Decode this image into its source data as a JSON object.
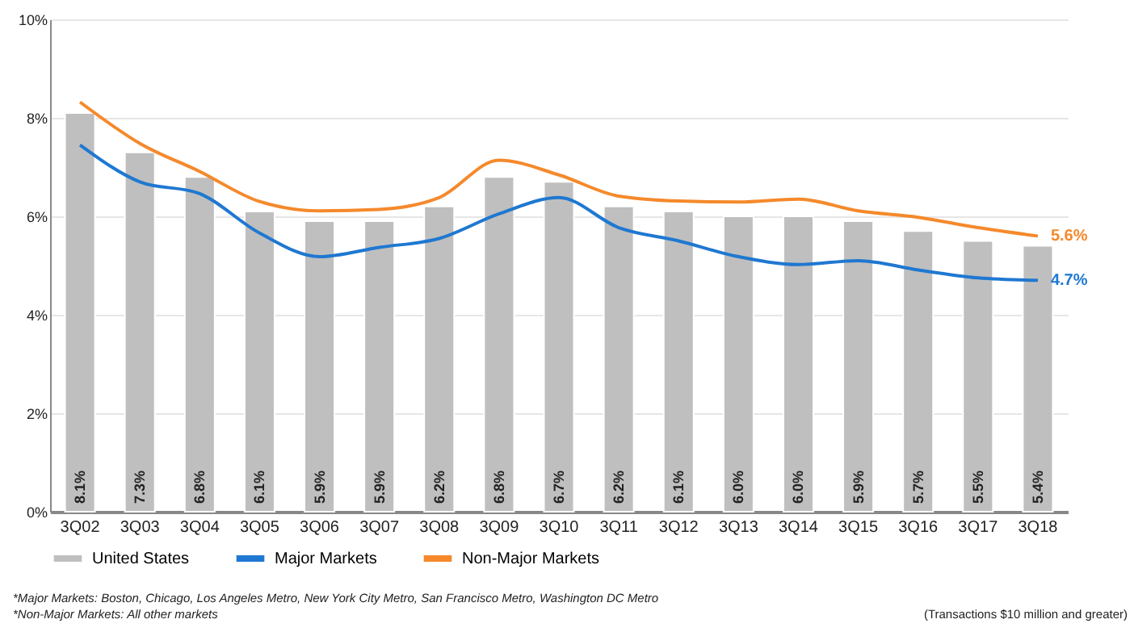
{
  "chart_data": {
    "type": "bar",
    "categories": [
      "3Q02",
      "3Q03",
      "3Q04",
      "3Q05",
      "3Q06",
      "3Q07",
      "3Q08",
      "3Q09",
      "3Q10",
      "3Q11",
      "3Q12",
      "3Q13",
      "3Q14",
      "3Q15",
      "3Q16",
      "3Q17",
      "3Q18"
    ],
    "series": [
      {
        "name": "United States",
        "color": "#bfbfbf",
        "values": [
          8.1,
          7.3,
          6.8,
          6.1,
          5.9,
          5.9,
          6.2,
          6.8,
          6.7,
          6.2,
          6.1,
          6.0,
          6.0,
          5.9,
          5.7,
          5.5,
          5.4
        ],
        "value_labels": [
          "8.1%",
          "7.3%",
          "6.8%",
          "6.1%",
          "5.9%",
          "5.9%",
          "6.2%",
          "6.8%",
          "6.7%",
          "6.2%",
          "6.1%",
          "6.0%",
          "6.0%",
          "5.9%",
          "5.7%",
          "5.5%",
          "5.4%"
        ]
      },
      {
        "name": "Major Markets",
        "type": "line",
        "color": "#1f78d1",
        "values": [
          7.45,
          6.7,
          6.46,
          5.66,
          5.18,
          5.37,
          5.55,
          6.05,
          6.38,
          5.77,
          5.5,
          5.18,
          5.02,
          5.1,
          4.91,
          4.75,
          4.7
        ],
        "value_labels": [
          null,
          null,
          null,
          null,
          null,
          null,
          null,
          null,
          null,
          null,
          null,
          null,
          null,
          null,
          null,
          null,
          "4.7%"
        ]
      },
      {
        "name": "Non-Major Markets",
        "type": "line",
        "color": "#f5892b",
        "values": [
          8.32,
          7.48,
          6.91,
          6.3,
          6.11,
          6.14,
          6.38,
          7.14,
          6.84,
          6.41,
          6.31,
          6.29,
          6.35,
          6.11,
          5.98,
          5.77,
          5.6
        ],
        "value_labels": [
          null,
          null,
          null,
          null,
          null,
          null,
          null,
          null,
          null,
          null,
          null,
          null,
          null,
          null,
          null,
          null,
          "5.6%"
        ]
      }
    ],
    "ylim": [
      0,
      10
    ],
    "yticks": [
      {
        "value": 0,
        "label": "0%"
      },
      {
        "value": 2,
        "label": "2%"
      },
      {
        "value": 4,
        "label": "4%"
      },
      {
        "value": 6,
        "label": "6%"
      },
      {
        "value": 8,
        "label": "8%"
      },
      {
        "value": 10,
        "label": "10%"
      }
    ],
    "grid": "y",
    "legend": "bottom",
    "annotations": [
      "*Major Markets: Boston, Chicago, Los Angeles Metro, New York City Metro, San Francisco Metro, Washington DC Metro",
      "*Non-Major Markets: All other markets",
      "(Transactions $10 million and greater)"
    ]
  }
}
